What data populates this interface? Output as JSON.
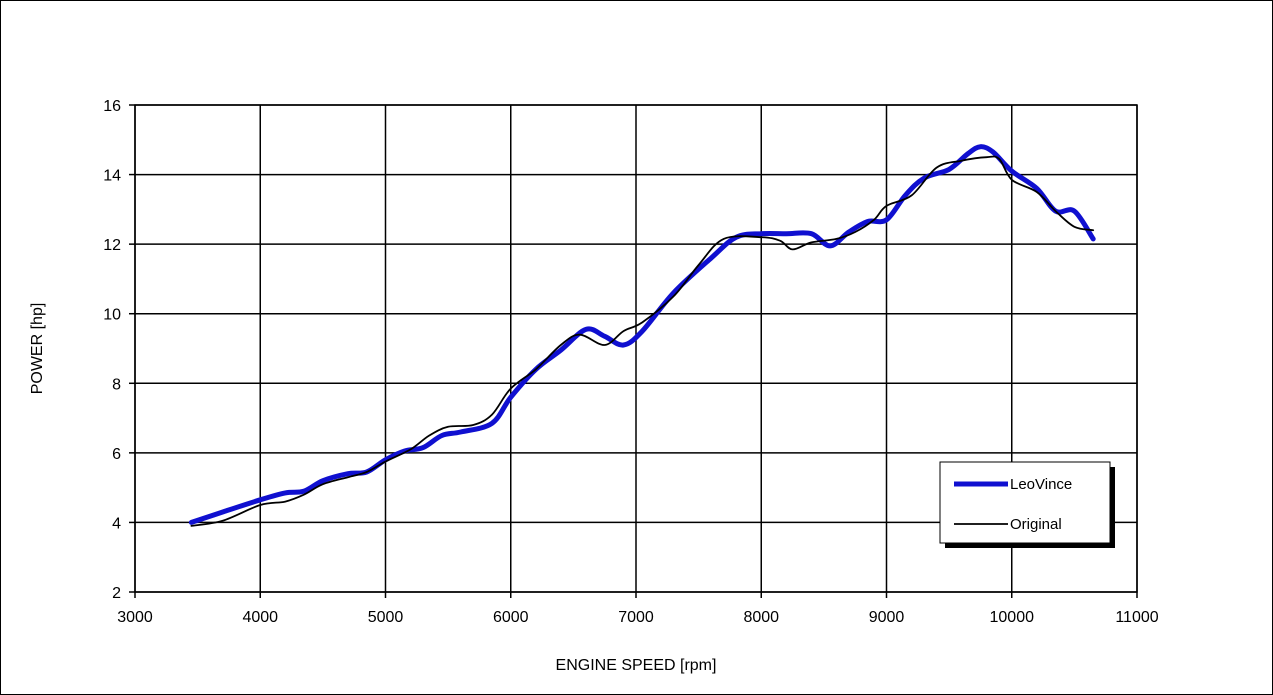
{
  "chart_data": {
    "type": "line",
    "title": "",
    "xlabel": "ENGINE SPEED [rpm]",
    "ylabel": "POWER [hp]",
    "xlim": [
      3000,
      11000
    ],
    "ylim": [
      2,
      16
    ],
    "x_ticks": [
      "3000",
      "4000",
      "5000",
      "6000",
      "7000",
      "8000",
      "9000",
      "10000",
      "11000"
    ],
    "y_ticks": [
      "2",
      "4",
      "6",
      "8",
      "10",
      "12",
      "14",
      "16"
    ],
    "grid": true,
    "legend_position": "bottom-right",
    "series": [
      {
        "name": "LeoVince",
        "color": "#1010d0",
        "points": [
          [
            3450,
            4.0
          ],
          [
            3700,
            4.3
          ],
          [
            4000,
            4.65
          ],
          [
            4200,
            4.85
          ],
          [
            4350,
            4.9
          ],
          [
            4500,
            5.2
          ],
          [
            4700,
            5.4
          ],
          [
            4850,
            5.45
          ],
          [
            5000,
            5.8
          ],
          [
            5150,
            6.05
          ],
          [
            5300,
            6.15
          ],
          [
            5450,
            6.5
          ],
          [
            5600,
            6.6
          ],
          [
            5850,
            6.85
          ],
          [
            6000,
            7.6
          ],
          [
            6200,
            8.4
          ],
          [
            6400,
            8.95
          ],
          [
            6600,
            9.55
          ],
          [
            6750,
            9.35
          ],
          [
            6900,
            9.1
          ],
          [
            7050,
            9.5
          ],
          [
            7300,
            10.6
          ],
          [
            7600,
            11.6
          ],
          [
            7800,
            12.2
          ],
          [
            8000,
            12.3
          ],
          [
            8200,
            12.3
          ],
          [
            8400,
            12.3
          ],
          [
            8550,
            11.95
          ],
          [
            8700,
            12.35
          ],
          [
            8850,
            12.65
          ],
          [
            9000,
            12.7
          ],
          [
            9150,
            13.4
          ],
          [
            9300,
            13.9
          ],
          [
            9500,
            14.15
          ],
          [
            9650,
            14.6
          ],
          [
            9750,
            14.8
          ],
          [
            9850,
            14.65
          ],
          [
            10000,
            14.1
          ],
          [
            10200,
            13.6
          ],
          [
            10350,
            12.95
          ],
          [
            10500,
            12.95
          ],
          [
            10650,
            12.15
          ]
        ]
      },
      {
        "name": "Original",
        "color": "#000000",
        "points": [
          [
            3450,
            3.9
          ],
          [
            3700,
            4.05
          ],
          [
            4000,
            4.5
          ],
          [
            4200,
            4.6
          ],
          [
            4350,
            4.8
          ],
          [
            4500,
            5.1
          ],
          [
            4700,
            5.3
          ],
          [
            4850,
            5.45
          ],
          [
            5000,
            5.75
          ],
          [
            5200,
            6.1
          ],
          [
            5350,
            6.5
          ],
          [
            5500,
            6.75
          ],
          [
            5700,
            6.8
          ],
          [
            5850,
            7.1
          ],
          [
            6000,
            7.85
          ],
          [
            6200,
            8.4
          ],
          [
            6400,
            9.1
          ],
          [
            6550,
            9.4
          ],
          [
            6750,
            9.1
          ],
          [
            6900,
            9.5
          ],
          [
            7050,
            9.75
          ],
          [
            7300,
            10.5
          ],
          [
            7500,
            11.4
          ],
          [
            7700,
            12.15
          ],
          [
            8000,
            12.2
          ],
          [
            8150,
            12.1
          ],
          [
            8250,
            11.85
          ],
          [
            8400,
            12.05
          ],
          [
            8600,
            12.15
          ],
          [
            8750,
            12.35
          ],
          [
            8900,
            12.7
          ],
          [
            9000,
            13.1
          ],
          [
            9200,
            13.4
          ],
          [
            9400,
            14.2
          ],
          [
            9600,
            14.4
          ],
          [
            9800,
            14.5
          ],
          [
            9900,
            14.45
          ],
          [
            10000,
            13.85
          ],
          [
            10200,
            13.5
          ],
          [
            10350,
            12.95
          ],
          [
            10500,
            12.5
          ],
          [
            10650,
            12.4
          ]
        ]
      }
    ]
  }
}
